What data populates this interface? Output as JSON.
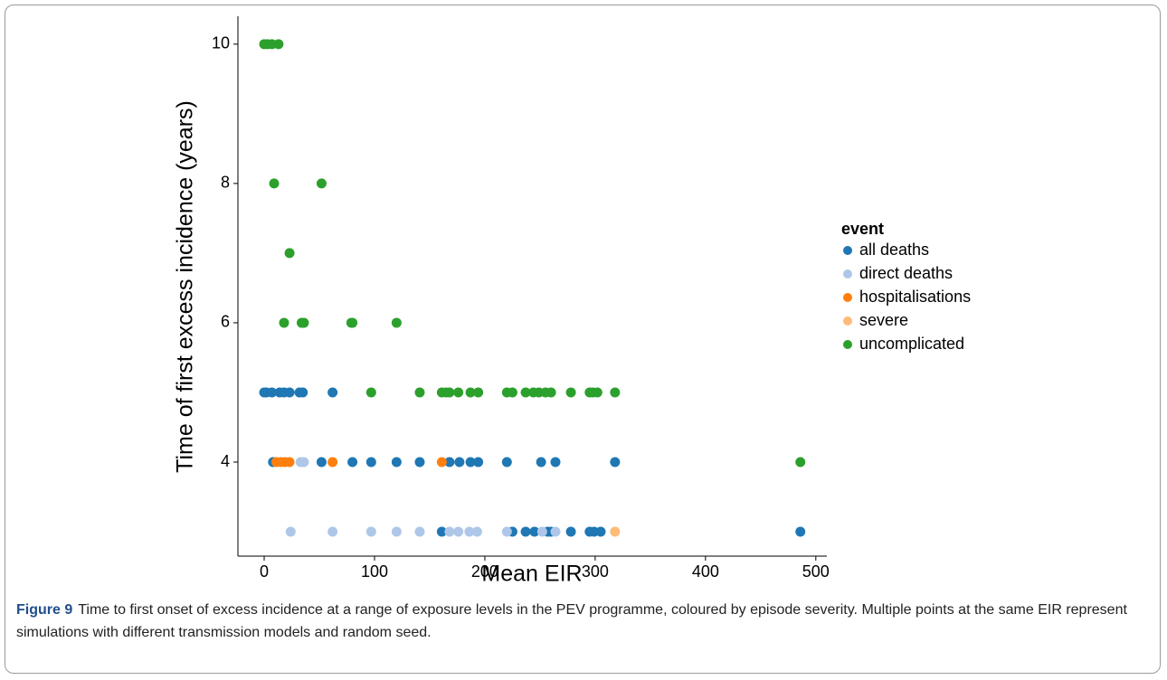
{
  "chart_data": {
    "type": "scatter",
    "xlabel": "Mean EIR",
    "ylabel": "Time of first excess incidence (years)",
    "xlim": [
      -23.8,
      510
    ],
    "ylim": [
      2.65,
      10.4
    ],
    "xticks": [
      0,
      100,
      200,
      300,
      400,
      500
    ],
    "yticks": [
      4,
      6,
      8,
      10
    ],
    "legend_title": "event",
    "legend_position": "right",
    "series": [
      {
        "name": "all deaths",
        "color": "#1f77b4",
        "x": [
          0,
          2,
          7,
          14,
          18,
          23,
          32,
          35,
          62,
          8,
          52,
          80,
          97,
          120,
          141,
          168,
          177,
          187,
          194,
          220,
          251,
          264,
          318,
          161,
          225,
          237,
          245,
          257,
          260,
          278,
          295,
          299,
          305,
          486
        ],
        "y": [
          5,
          5,
          5,
          5,
          5,
          5,
          5,
          5,
          5,
          4,
          4,
          4,
          4,
          4,
          4,
          4,
          4,
          4,
          4,
          4,
          4,
          4,
          4,
          3,
          3,
          3,
          3,
          3,
          3,
          3,
          3,
          3,
          3,
          3
        ]
      },
      {
        "name": "direct deaths",
        "color": "#aec7e8",
        "x": [
          33,
          36,
          24,
          62,
          97,
          120,
          141,
          168,
          176,
          186,
          193,
          220,
          252,
          264
        ],
        "y": [
          4,
          4,
          3,
          3,
          3,
          3,
          3,
          3,
          3,
          3,
          3,
          3,
          3,
          3
        ]
      },
      {
        "name": "hospitalisations",
        "color": "#ff7f0e",
        "x": [
          11,
          15,
          19,
          23,
          62,
          161
        ],
        "y": [
          4,
          4,
          4,
          4,
          4,
          4
        ]
      },
      {
        "name": "severe",
        "color": "#ffbb78",
        "x": [
          318
        ],
        "y": [
          3
        ]
      },
      {
        "name": "uncomplicated",
        "color": "#2ca02c",
        "x": [
          0,
          3,
          7,
          13,
          9,
          52,
          23,
          18,
          34,
          36,
          79,
          80,
          120,
          97,
          141,
          161,
          165,
          168,
          176,
          187,
          194,
          220,
          225,
          237,
          244,
          249,
          255,
          260,
          278,
          295,
          298,
          302,
          318,
          486
        ],
        "y": [
          10,
          10,
          10,
          10,
          8,
          8,
          7,
          6,
          6,
          6,
          6,
          6,
          6,
          5,
          5,
          5,
          5,
          5,
          5,
          5,
          5,
          5,
          5,
          5,
          5,
          5,
          5,
          5,
          5,
          5,
          5,
          5,
          5,
          4
        ]
      }
    ]
  },
  "caption": {
    "label": "Figure 9",
    "text": "Time to first onset of excess incidence at a range of exposure levels in the PEV programme, coloured by episode severity. Multiple points at the same EIR represent simulations with different transmission models and random seed."
  }
}
